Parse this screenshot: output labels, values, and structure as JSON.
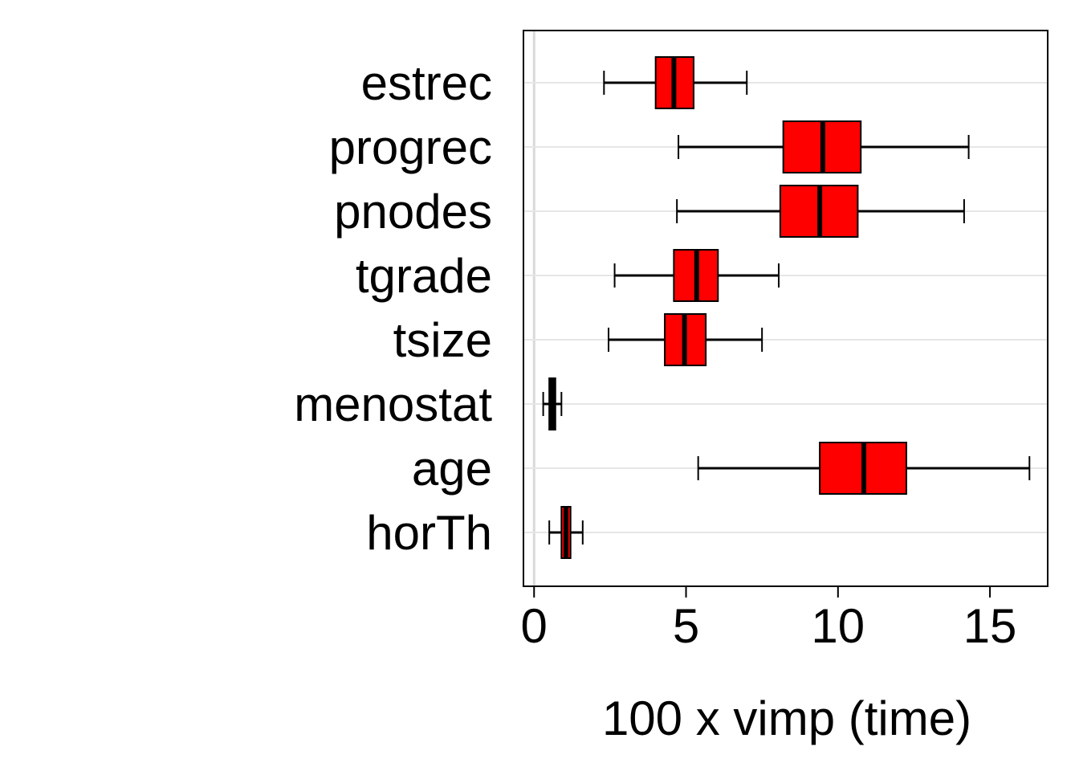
{
  "chart_data": {
    "type": "boxplot",
    "orientation": "horizontal",
    "xlabel": "100 x vimp (time)",
    "xlim": [
      -0.35,
      16.9
    ],
    "xticks": [
      0,
      5,
      10,
      15
    ],
    "grid": "horizontal",
    "reference_line_x": 0,
    "colors": {
      "box_fill": "#ff0000",
      "outline": "#000000",
      "grid": "#e6e6e6",
      "refline": "#d9d9d9"
    },
    "categories": [
      "estrec",
      "progrec",
      "pnodes",
      "tgrade",
      "tsize",
      "menostat",
      "age",
      "horTh"
    ],
    "boxes": [
      {
        "label": "estrec",
        "min": 2.3,
        "q1": 4.0,
        "median": 4.6,
        "q3": 5.25,
        "max": 7.0
      },
      {
        "label": "progrec",
        "min": 4.75,
        "q1": 8.2,
        "median": 9.5,
        "q3": 10.75,
        "max": 14.3
      },
      {
        "label": "pnodes",
        "min": 4.7,
        "q1": 8.1,
        "median": 9.4,
        "q3": 10.65,
        "max": 14.15
      },
      {
        "label": "tgrade",
        "min": 2.65,
        "q1": 4.6,
        "median": 5.35,
        "q3": 6.05,
        "max": 8.05
      },
      {
        "label": "tsize",
        "min": 2.45,
        "q1": 4.3,
        "median": 4.95,
        "q3": 5.65,
        "max": 7.5
      },
      {
        "label": "menostat",
        "min": 0.3,
        "q1": 0.5,
        "median": 0.6,
        "q3": 0.7,
        "max": 0.9
      },
      {
        "label": "age",
        "min": 5.4,
        "q1": 9.4,
        "median": 10.85,
        "q3": 12.25,
        "max": 16.3
      },
      {
        "label": "horTh",
        "min": 0.5,
        "q1": 0.9,
        "median": 1.05,
        "q3": 1.2,
        "max": 1.6
      }
    ]
  }
}
